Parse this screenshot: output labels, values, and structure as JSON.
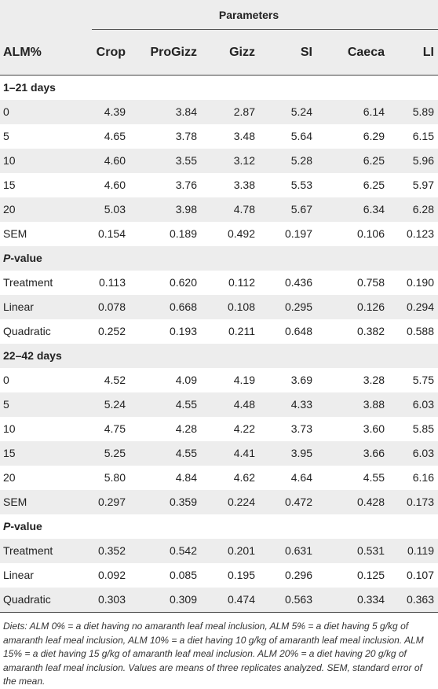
{
  "header": {
    "group_title": "Parameters",
    "row_label": "ALM%",
    "columns": [
      "Crop",
      "ProGizz",
      "Gizz",
      "SI",
      "Caeca",
      "LI"
    ]
  },
  "sections": [
    {
      "title": "1–21 days",
      "rows": [
        {
          "label": "0",
          "values": [
            "4.39",
            "3.84",
            "2.87",
            "5.24",
            "6.14",
            "5.89"
          ]
        },
        {
          "label": "5",
          "values": [
            "4.65",
            "3.78",
            "3.48",
            "5.64",
            "6.29",
            "6.15"
          ]
        },
        {
          "label": "10",
          "values": [
            "4.60",
            "3.55",
            "3.12",
            "5.28",
            "6.25",
            "5.96"
          ]
        },
        {
          "label": "15",
          "values": [
            "4.60",
            "3.76",
            "3.38",
            "5.53",
            "6.25",
            "5.97"
          ]
        },
        {
          "label": "20",
          "values": [
            "5.03",
            "3.98",
            "4.78",
            "5.67",
            "6.34",
            "6.28"
          ]
        },
        {
          "label": "SEM",
          "values": [
            "0.154",
            "0.189",
            "0.492",
            "0.197",
            "0.106",
            "0.123"
          ]
        }
      ],
      "pvalue_title_italic": "P",
      "pvalue_title_rest": "-value",
      "pvalue_rows": [
        {
          "label": "Treatment",
          "values": [
            "0.113",
            "0.620",
            "0.112",
            "0.436",
            "0.758",
            "0.190"
          ]
        },
        {
          "label": "Linear",
          "values": [
            "0.078",
            "0.668",
            "0.108",
            "0.295",
            "0.126",
            "0.294"
          ]
        },
        {
          "label": "Quadratic",
          "values": [
            "0.252",
            "0.193",
            "0.211",
            "0.648",
            "0.382",
            "0.588"
          ]
        }
      ]
    },
    {
      "title": "22–42 days",
      "rows": [
        {
          "label": "0",
          "values": [
            "4.52",
            "4.09",
            "4.19",
            "3.69",
            "3.28",
            "5.75"
          ]
        },
        {
          "label": "5",
          "values": [
            "5.24",
            "4.55",
            "4.48",
            "4.33",
            "3.88",
            "6.03"
          ]
        },
        {
          "label": "10",
          "values": [
            "4.75",
            "4.28",
            "4.22",
            "3.73",
            "3.60",
            "5.85"
          ]
        },
        {
          "label": "15",
          "values": [
            "5.25",
            "4.55",
            "4.41",
            "3.95",
            "3.66",
            "6.03"
          ]
        },
        {
          "label": "20",
          "values": [
            "5.80",
            "4.84",
            "4.62",
            "4.64",
            "4.55",
            "6.16"
          ]
        },
        {
          "label": "SEM",
          "values": [
            "0.297",
            "0.359",
            "0.224",
            "0.472",
            "0.428",
            "0.173"
          ]
        }
      ],
      "pvalue_title_italic": "P",
      "pvalue_title_rest": "-value",
      "pvalue_rows": [
        {
          "label": "Treatment",
          "values": [
            "0.352",
            "0.542",
            "0.201",
            "0.631",
            "0.531",
            "0.119"
          ]
        },
        {
          "label": "Linear",
          "values": [
            "0.092",
            "0.085",
            "0.195",
            "0.296",
            "0.125",
            "0.107"
          ]
        },
        {
          "label": "Quadratic",
          "values": [
            "0.303",
            "0.309",
            "0.474",
            "0.563",
            "0.334",
            "0.363"
          ]
        }
      ]
    }
  ],
  "footnote": "Diets: ALM 0% = a diet having no amaranth leaf meal inclusion, ALM 5% = a diet having 5 g/kg of amaranth leaf meal inclusion, ALM 10% = a diet having 10 g/kg of amaranth leaf meal inclusion. ALM 15% = a diet having 15 g/kg of amaranth leaf meal inclusion. ALM 20% = a diet having 20 g/kg of amaranth leaf meal inclusion. Values are means of three replicates analyzed. SEM, standard error of the mean."
}
